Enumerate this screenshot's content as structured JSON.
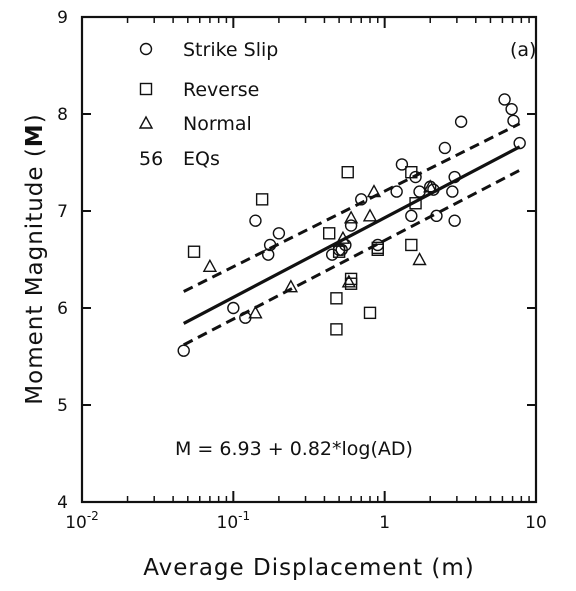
{
  "chart_data": {
    "type": "scatter",
    "panel_label": "(a)",
    "xlabel": "Average Displacement (m)",
    "ylabel": "Moment Magnitude (",
    "ylabel_bold": "M",
    "ylabel_end": ")",
    "x_scale": "log",
    "xlim": [
      0.01,
      10
    ],
    "ylim": [
      4,
      9
    ],
    "x_tick_labels": [
      {
        "x": 0.01,
        "base": "10",
        "exp": "-2"
      },
      {
        "x": 0.1,
        "base": "10",
        "exp": "-1"
      },
      {
        "x": 1,
        "base": "1",
        "exp": ""
      },
      {
        "x": 10,
        "base": "10",
        "exp": ""
      }
    ],
    "y_ticks": [
      4,
      5,
      6,
      7,
      8,
      9
    ],
    "y_tick_labels": [
      "4",
      "5",
      "6",
      "7",
      "8",
      "9"
    ],
    "grid": false,
    "legend_position": "top-left",
    "legend": {
      "entries": [
        {
          "marker": "circle",
          "label": "Strike Slip"
        },
        {
          "marker": "square",
          "label": "Reverse"
        },
        {
          "marker": "triangle",
          "label": "Normal"
        }
      ],
      "count_value": "56",
      "count_label": "EQs"
    },
    "equation": "M = 6.93 + 0.82*log(AD)",
    "regression": {
      "intercept": 6.93,
      "slope": 0.82,
      "x_range": [
        0.047,
        7.8
      ]
    },
    "confidence_bounds": [
      {
        "name": "upper",
        "points": [
          [
            0.047,
            6.17
          ],
          [
            7.8,
            7.9
          ]
        ]
      },
      {
        "name": "lower",
        "points": [
          [
            0.047,
            5.62
          ],
          [
            7.8,
            7.42
          ]
        ]
      }
    ],
    "series": [
      {
        "name": "Strike Slip",
        "marker": "circle",
        "points": [
          [
            0.047,
            5.56
          ],
          [
            0.1,
            6.0
          ],
          [
            0.12,
            5.9
          ],
          [
            0.14,
            6.9
          ],
          [
            0.17,
            6.55
          ],
          [
            0.175,
            6.65
          ],
          [
            0.2,
            6.77
          ],
          [
            0.45,
            6.55
          ],
          [
            0.5,
            6.6
          ],
          [
            0.52,
            6.6
          ],
          [
            0.55,
            6.65
          ],
          [
            0.6,
            6.85
          ],
          [
            0.7,
            7.12
          ],
          [
            0.9,
            6.65
          ],
          [
            1.2,
            7.2
          ],
          [
            1.3,
            7.48
          ],
          [
            1.5,
            6.95
          ],
          [
            1.6,
            7.35
          ],
          [
            1.7,
            7.2
          ],
          [
            2.0,
            7.25
          ],
          [
            2.1,
            7.22
          ],
          [
            2.2,
            6.95
          ],
          [
            2.5,
            7.65
          ],
          [
            2.8,
            7.2
          ],
          [
            2.9,
            7.35
          ],
          [
            2.9,
            6.9
          ],
          [
            3.2,
            7.92
          ],
          [
            6.2,
            8.15
          ],
          [
            6.9,
            8.05
          ],
          [
            7.1,
            7.93
          ],
          [
            7.8,
            7.7
          ]
        ]
      },
      {
        "name": "Reverse",
        "marker": "square",
        "points": [
          [
            0.055,
            6.58
          ],
          [
            0.155,
            7.12
          ],
          [
            0.43,
            6.77
          ],
          [
            0.48,
            6.1
          ],
          [
            0.48,
            5.78
          ],
          [
            0.5,
            6.58
          ],
          [
            0.57,
            7.4
          ],
          [
            0.6,
            6.25
          ],
          [
            0.6,
            6.3
          ],
          [
            0.8,
            5.95
          ],
          [
            0.9,
            6.6
          ],
          [
            0.9,
            6.62
          ],
          [
            1.5,
            7.4
          ],
          [
            1.5,
            6.65
          ],
          [
            1.6,
            7.08
          ]
        ]
      },
      {
        "name": "Normal",
        "marker": "triangle",
        "points": [
          [
            0.07,
            6.43
          ],
          [
            0.14,
            5.95
          ],
          [
            0.24,
            6.22
          ],
          [
            0.53,
            6.72
          ],
          [
            0.58,
            6.27
          ],
          [
            0.6,
            6.93
          ],
          [
            0.8,
            6.95
          ],
          [
            0.85,
            7.2
          ],
          [
            1.7,
            6.5
          ],
          [
            2.0,
            7.25
          ]
        ]
      }
    ]
  }
}
